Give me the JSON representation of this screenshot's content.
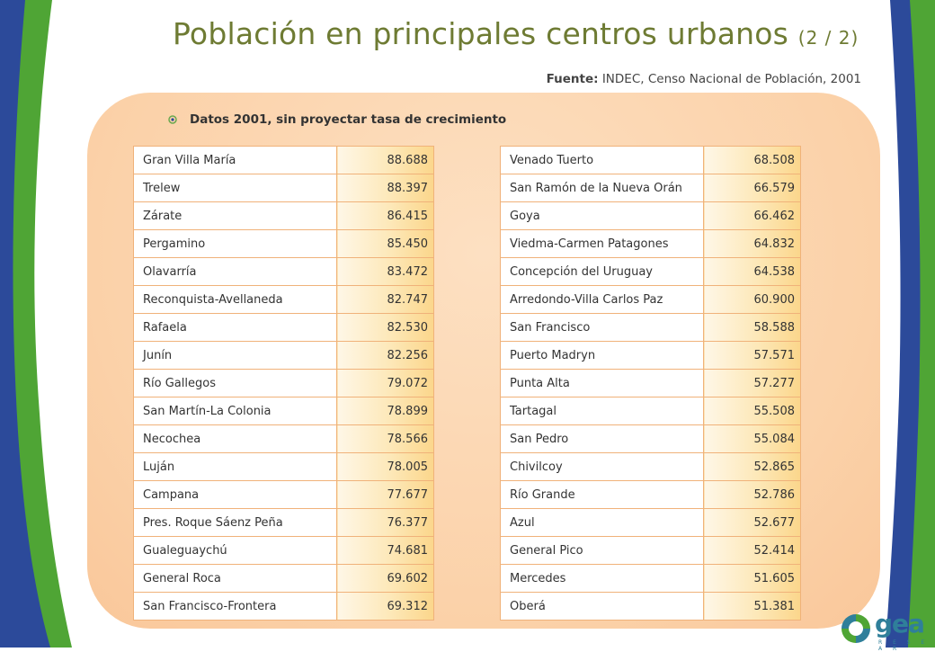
{
  "title": "Población en principales centros urbanos",
  "page_indicator": "(2 / 2)",
  "source_label": "Fuente:",
  "source_text": "INDEC, Censo Nacional de Población, 2001",
  "subtitle": "Datos 2001, sin proyectar tasa de crecimiento",
  "logo_text": "gea",
  "logo_subtext": "R E S E A R",
  "colors": {
    "title": "#6e7b33",
    "panel": "#fbd1a8",
    "border": "#f0b27a",
    "green": "#4fa535",
    "blue": "#2c4a9a"
  },
  "left_table": [
    {
      "name": "Gran Villa María",
      "value": "88.688"
    },
    {
      "name": "Trelew",
      "value": "88.397"
    },
    {
      "name": "Zárate",
      "value": "86.415"
    },
    {
      "name": "Pergamino",
      "value": "85.450"
    },
    {
      "name": "Olavarría",
      "value": "83.472"
    },
    {
      "name": "Reconquista-Avellaneda",
      "value": "82.747"
    },
    {
      "name": "Rafaela",
      "value": "82.530"
    },
    {
      "name": "Junín",
      "value": "82.256"
    },
    {
      "name": "Río Gallegos",
      "value": "79.072"
    },
    {
      "name": "San Martín-La Colonia",
      "value": "78.899"
    },
    {
      "name": "Necochea",
      "value": "78.566"
    },
    {
      "name": "Luján",
      "value": "78.005"
    },
    {
      "name": "Campana",
      "value": "77.677"
    },
    {
      "name": "Pres. Roque Sáenz Peña",
      "value": "76.377"
    },
    {
      "name": "Gualeguaychú",
      "value": "74.681"
    },
    {
      "name": "General Roca",
      "value": "69.602"
    },
    {
      "name": "San Francisco-Frontera",
      "value": "69.312"
    }
  ],
  "right_table": [
    {
      "name": "Venado Tuerto",
      "value": "68.508"
    },
    {
      "name": "San Ramón de la Nueva Orán",
      "value": "66.579"
    },
    {
      "name": "Goya",
      "value": "66.462"
    },
    {
      "name": "Viedma-Carmen Patagones",
      "value": "64.832"
    },
    {
      "name": "Concepción del Uruguay",
      "value": "64.538"
    },
    {
      "name": "Arredondo-Villa Carlos Paz",
      "value": "60.900"
    },
    {
      "name": "San Francisco",
      "value": "58.588"
    },
    {
      "name": "Puerto Madryn",
      "value": "57.571"
    },
    {
      "name": "Punta Alta",
      "value": "57.277"
    },
    {
      "name": "Tartagal",
      "value": "55.508"
    },
    {
      "name": "San Pedro",
      "value": "55.084"
    },
    {
      "name": "Chivilcoy",
      "value": "52.865"
    },
    {
      "name": "Río Grande",
      "value": "52.786"
    },
    {
      "name": "Azul",
      "value": "52.677"
    },
    {
      "name": "General Pico",
      "value": "52.414"
    },
    {
      "name": "Mercedes",
      "value": "51.605"
    },
    {
      "name": "Oberá",
      "value": "51.381"
    }
  ]
}
